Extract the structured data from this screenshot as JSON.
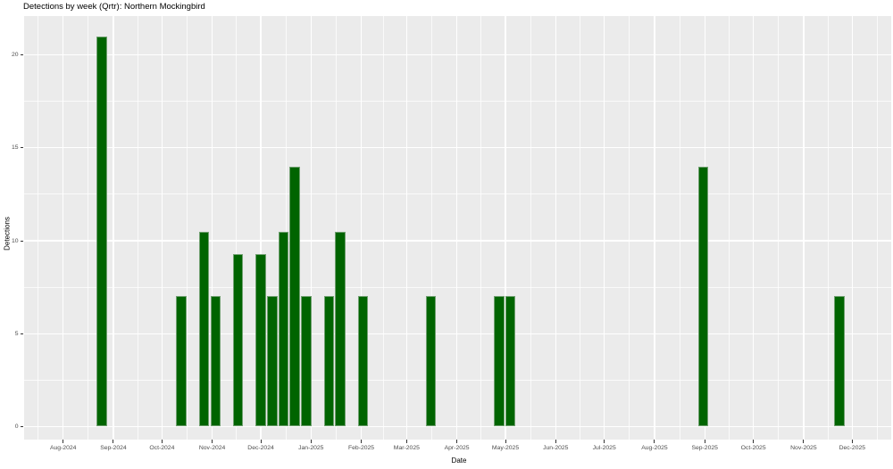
{
  "chart_data": {
    "type": "bar",
    "title": "Detections by week (Qrtr): Northern Mockingbird",
    "xlabel": "Date",
    "ylabel": "Detections",
    "bar_color": "#006400",
    "panel_bg": "#EBEBEB",
    "grid_color": "#FFFFFF",
    "tick_label_color": "#4D4D4D",
    "tick_mark_color": "#333333",
    "legend": "none",
    "y_axis": {
      "ticks": [
        0,
        5,
        10,
        15,
        20
      ],
      "minor": [
        2.5,
        7.5,
        12.5,
        17.5
      ],
      "range": [
        0,
        22
      ]
    },
    "x_axis": {
      "months": [
        {
          "label": "Aug-2024",
          "date": "2024-08-01"
        },
        {
          "label": "Sep-2024",
          "date": "2024-09-01"
        },
        {
          "label": "Oct-2024",
          "date": "2024-10-01"
        },
        {
          "label": "Nov-2024",
          "date": "2024-11-01"
        },
        {
          "label": "Dec-2024",
          "date": "2024-12-01"
        },
        {
          "label": "Jan-2025",
          "date": "2025-01-01"
        },
        {
          "label": "Feb-2025",
          "date": "2025-02-01"
        },
        {
          "label": "Mar-2025",
          "date": "2025-03-01"
        },
        {
          "label": "Apr-2025",
          "date": "2025-04-01"
        },
        {
          "label": "May-2025",
          "date": "2025-05-01"
        },
        {
          "label": "Jun-2025",
          "date": "2025-06-01"
        },
        {
          "label": "Jul-2025",
          "date": "2025-07-01"
        },
        {
          "label": "Aug-2025",
          "date": "2025-08-01"
        },
        {
          "label": "Sep-2025",
          "date": "2025-09-01"
        },
        {
          "label": "Oct-2025",
          "date": "2025-10-01"
        },
        {
          "label": "Nov-2025",
          "date": "2025-11-01"
        },
        {
          "label": "Dec-2025",
          "date": "2025-12-01"
        }
      ]
    },
    "bars": [
      {
        "week": "2024-08-25",
        "value": 21
      },
      {
        "week": "2024-10-13",
        "value": 7
      },
      {
        "week": "2024-10-27",
        "value": 10.5
      },
      {
        "week": "2024-11-03",
        "value": 7
      },
      {
        "week": "2024-11-17",
        "value": 9.3
      },
      {
        "week": "2024-12-01",
        "value": 9.3
      },
      {
        "week": "2024-12-08",
        "value": 7
      },
      {
        "week": "2024-12-15",
        "value": 10.5
      },
      {
        "week": "2024-12-22",
        "value": 14
      },
      {
        "week": "2024-12-29",
        "value": 7
      },
      {
        "week": "2025-01-12",
        "value": 7
      },
      {
        "week": "2025-01-19",
        "value": 10.5
      },
      {
        "week": "2025-02-02",
        "value": 7
      },
      {
        "week": "2025-03-16",
        "value": 7
      },
      {
        "week": "2025-04-27",
        "value": 7
      },
      {
        "week": "2025-05-04",
        "value": 7
      },
      {
        "week": "2025-08-31",
        "value": 14
      },
      {
        "week": "2025-11-23",
        "value": 7
      }
    ]
  }
}
